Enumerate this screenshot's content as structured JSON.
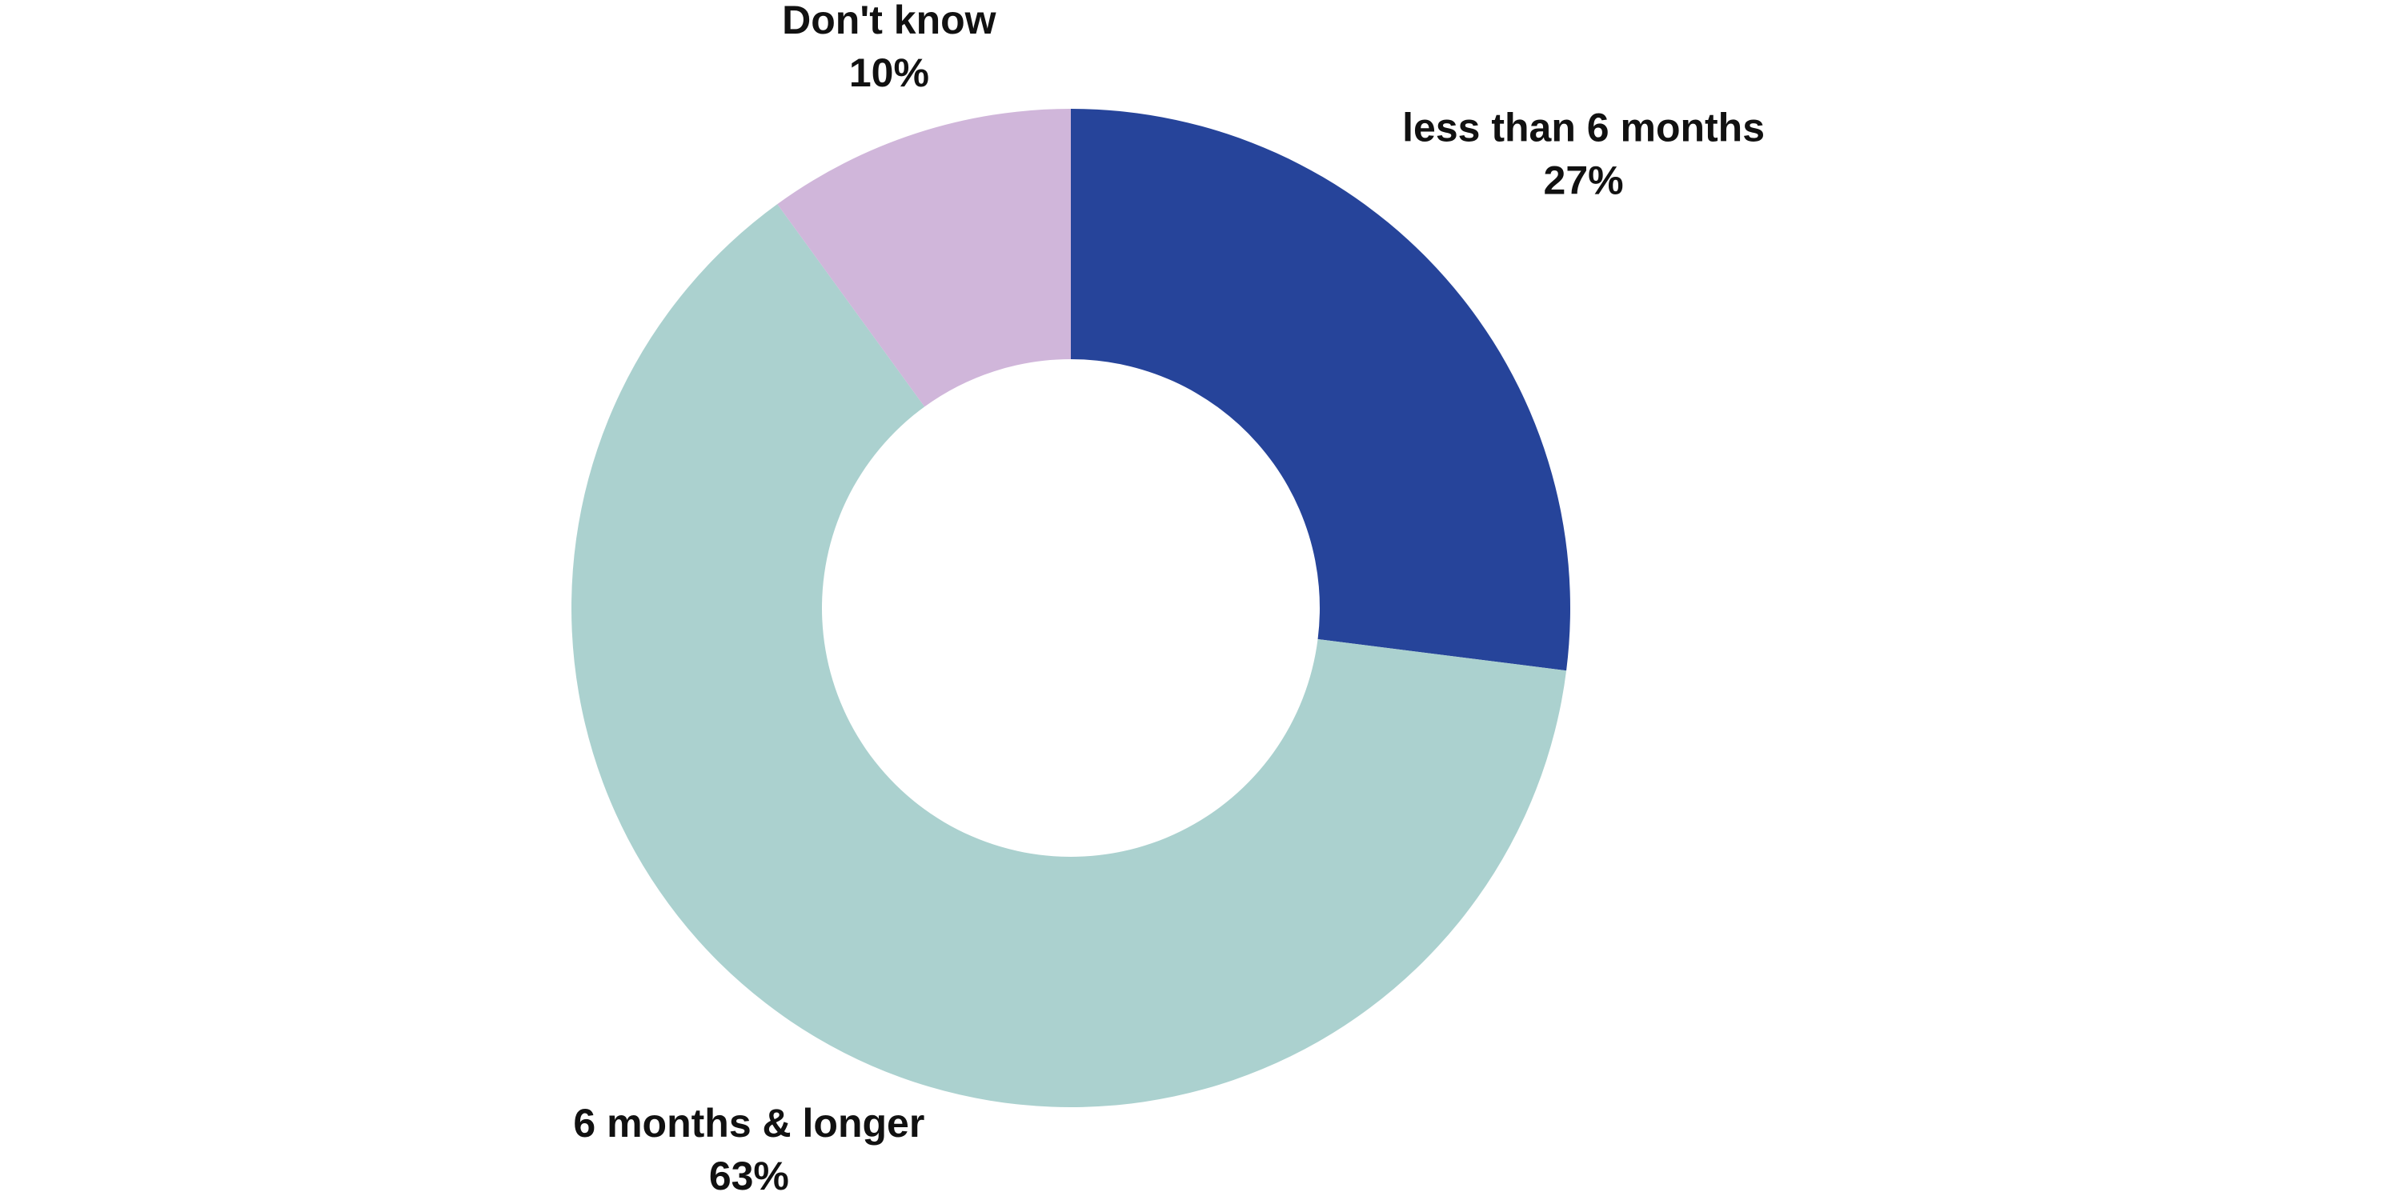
{
  "chart_data": {
    "type": "donut",
    "categories": [
      "less than 6 months",
      "6 months & longer",
      "Don't know"
    ],
    "values": [
      27,
      63,
      10
    ],
    "value_labels": [
      "27%",
      "63%",
      "10%"
    ],
    "colors": [
      "#26449a",
      "#abd1cf",
      "#d0b6da"
    ]
  }
}
